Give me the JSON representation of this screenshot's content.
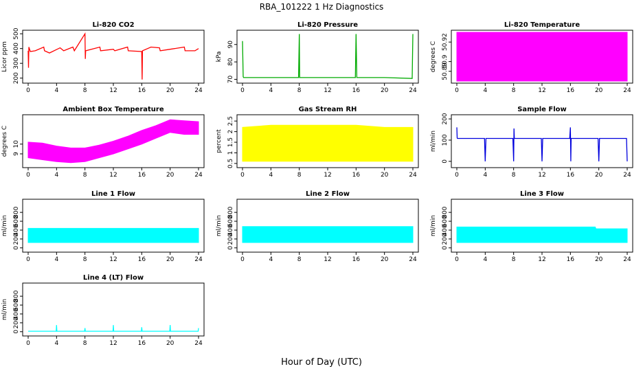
{
  "figure": {
    "title": "RBA_101222  1 Hz Diagnostics",
    "xlabel": "Hour of Day (UTC)"
  },
  "chart_data": [
    {
      "type": "line",
      "title": "Li-820 CO2",
      "ylabel": "Licor ppm",
      "color": "#ff0000",
      "xlim": [
        0,
        24
      ],
      "ylim": [
        180,
        510
      ],
      "xticks": [
        0,
        4,
        8,
        12,
        16,
        20,
        24
      ],
      "yticks": [
        200,
        300,
        400,
        500
      ],
      "x": [
        0,
        0.05,
        0.1,
        0.3,
        1.0,
        2.2,
        2.3,
        3.0,
        4.5,
        5.0,
        6.3,
        6.5,
        8.0,
        8.05,
        8.1,
        10.1,
        10.2,
        12.0,
        12.2,
        14.0,
        14.1,
        16.0,
        16.05,
        16.1,
        17.3,
        18.5,
        18.6,
        20.0,
        22.0,
        22.1,
        23.5,
        24.0
      ],
      "series": [
        {
          "values": [
            385,
            270,
            410,
            380,
            385,
            410,
            385,
            370,
            405,
            385,
            410,
            385,
            500,
            330,
            385,
            410,
            385,
            395,
            385,
            410,
            385,
            380,
            190,
            385,
            410,
            405,
            385,
            395,
            410,
            385,
            385,
            400
          ]
        }
      ]
    },
    {
      "type": "line",
      "title": "Li-820 Pressure",
      "ylabel": "kPa",
      "color": "#00aa00",
      "xlim": [
        0,
        24
      ],
      "ylim": [
        69,
        97
      ],
      "xticks": [
        0,
        4,
        8,
        12,
        16,
        20,
        24
      ],
      "yticks": [
        70,
        80,
        90
      ],
      "x": [
        0,
        0.1,
        0.15,
        4,
        7.9,
        8.0,
        8.05,
        12,
        15.9,
        16.0,
        16.1,
        20,
        23.9,
        24.0
      ],
      "series": [
        {
          "values": [
            92,
            71.5,
            71,
            71,
            71,
            96,
            71,
            71,
            71,
            96,
            71,
            71,
            70.5,
            96
          ]
        }
      ]
    },
    {
      "type": "area",
      "title": "Li-820 Temperature",
      "ylabel": "degrees C",
      "color": "#ff00ff",
      "xlim": [
        0,
        24
      ],
      "ylim": [
        50.88,
        50.93
      ],
      "xticks": [
        0,
        4,
        8,
        12,
        16,
        20,
        24
      ],
      "yticks": [
        50.89,
        50.9,
        50.92
      ],
      "x": [
        0,
        24
      ],
      "series": [
        {
          "values": [
            50.93,
            50.93
          ]
        }
      ]
    },
    {
      "type": "area",
      "title": "Ambient Box Temperature",
      "ylabel": "degrees C",
      "color": "#ff00ff",
      "xlim": [
        0,
        24
      ],
      "ylim": [
        7.8,
        12.8
      ],
      "xticks": [
        0,
        4,
        8,
        12,
        16,
        20,
        24
      ],
      "yticks": [
        9,
        10
      ],
      "x": [
        0,
        2,
        4,
        6,
        8,
        10,
        12,
        14,
        16,
        18,
        20,
        22,
        24
      ],
      "series": [
        {
          "values": [
            8.6,
            8.4,
            8.2,
            8.1,
            8.2,
            8.6,
            9.0,
            9.5,
            10.0,
            10.6,
            11.2,
            11.0,
            11.0
          ]
        },
        {
          "values": [
            10.2,
            10.1,
            9.8,
            9.6,
            9.6,
            9.9,
            10.3,
            10.8,
            11.4,
            11.9,
            12.5,
            12.4,
            12.3
          ]
        }
      ]
    },
    {
      "type": "area",
      "title": "Gas Stream RH",
      "ylabel": "percent",
      "color": "#ffff00",
      "xlim": [
        0,
        24
      ],
      "ylim": [
        0.4,
        2.7
      ],
      "xticks": [
        0,
        4,
        8,
        12,
        16,
        20,
        24
      ],
      "yticks": [
        0.5,
        1.0,
        1.5,
        2.0,
        2.5
      ],
      "x": [
        0,
        4,
        8,
        12,
        16,
        20,
        24
      ],
      "series": [
        {
          "values": [
            0.6,
            0.6,
            0.6,
            0.6,
            0.6,
            0.6,
            0.6
          ]
        },
        {
          "values": [
            2.2,
            2.3,
            2.3,
            2.3,
            2.3,
            2.2,
            2.2
          ]
        }
      ]
    },
    {
      "type": "line",
      "title": "Sample Flow",
      "ylabel": "ml/min",
      "color": "#0000dd",
      "xlim": [
        0,
        24
      ],
      "ylim": [
        -20,
        210
      ],
      "xticks": [
        0,
        4,
        8,
        12,
        16,
        20,
        24
      ],
      "yticks": [
        0,
        100,
        200
      ],
      "x": [
        0,
        0.05,
        0.1,
        3.9,
        4.0,
        4.1,
        7.9,
        8.0,
        8.05,
        8.1,
        11.9,
        12.0,
        12.1,
        15.9,
        16.0,
        16.05,
        16.1,
        19.9,
        20.0,
        20.1,
        23.9,
        24.0
      ],
      "series": [
        {
          "values": [
            160,
            110,
            108,
            108,
            0,
            108,
            108,
            0,
            155,
            108,
            108,
            0,
            108,
            108,
            160,
            0,
            108,
            108,
            0,
            108,
            108,
            0
          ]
        }
      ]
    },
    {
      "type": "area",
      "title": "Line 1 Flow",
      "ylabel": "ml/min",
      "color": "#00ffff",
      "xlim": [
        0,
        24
      ],
      "ylim": [
        -50,
        1050
      ],
      "xticks": [
        0,
        4,
        8,
        12,
        16,
        20,
        24
      ],
      "yticks": [
        0,
        200,
        400,
        600,
        800
      ],
      "x": [
        0,
        24
      ],
      "series": [
        {
          "values": [
            120,
            120
          ]
        },
        {
          "values": [
            440,
            440
          ]
        }
      ]
    },
    {
      "type": "area",
      "title": "Line 2 Flow",
      "ylabel": "ml/min",
      "color": "#00ffff",
      "xlim": [
        0,
        24
      ],
      "ylim": [
        -50,
        1050
      ],
      "xticks": [
        0,
        4,
        8,
        12,
        16,
        20,
        24
      ],
      "yticks": [
        0,
        200,
        400,
        600,
        800
      ],
      "x": [
        0,
        24
      ],
      "series": [
        {
          "values": [
            120,
            120
          ]
        },
        {
          "values": [
            480,
            480
          ]
        }
      ]
    },
    {
      "type": "area",
      "title": "Line 3 Flow",
      "ylabel": "ml/min",
      "color": "#00ffff",
      "xlim": [
        0,
        24
      ],
      "ylim": [
        -50,
        1050
      ],
      "xticks": [
        0,
        4,
        8,
        12,
        16,
        20,
        24
      ],
      "yticks": [
        0,
        200,
        400,
        600,
        800
      ],
      "x": [
        0,
        19.5,
        19.6,
        24
      ],
      "series": [
        {
          "values": [
            120,
            120,
            120,
            120
          ]
        },
        {
          "values": [
            470,
            470,
            430,
            430
          ]
        }
      ]
    },
    {
      "type": "line",
      "title": "Line 4 (LT) Flow",
      "ylabel": "ml/min",
      "color": "#00ffff",
      "xlim": [
        0,
        24
      ],
      "ylim": [
        -50,
        1050
      ],
      "xticks": [
        0,
        4,
        8,
        12,
        16,
        20,
        24
      ],
      "yticks": [
        0,
        200,
        400,
        600,
        800
      ],
      "x": [
        0,
        3.95,
        4.0,
        4.05,
        7.95,
        8.0,
        8.05,
        11.95,
        12.0,
        12.05,
        15.95,
        16.0,
        16.05,
        19.95,
        20.0,
        20.05,
        23.95,
        24.0
      ],
      "series": [
        {
          "values": [
            10,
            10,
            150,
            10,
            10,
            80,
            10,
            10,
            150,
            10,
            10,
            100,
            10,
            10,
            150,
            10,
            10,
            80
          ]
        }
      ]
    }
  ]
}
